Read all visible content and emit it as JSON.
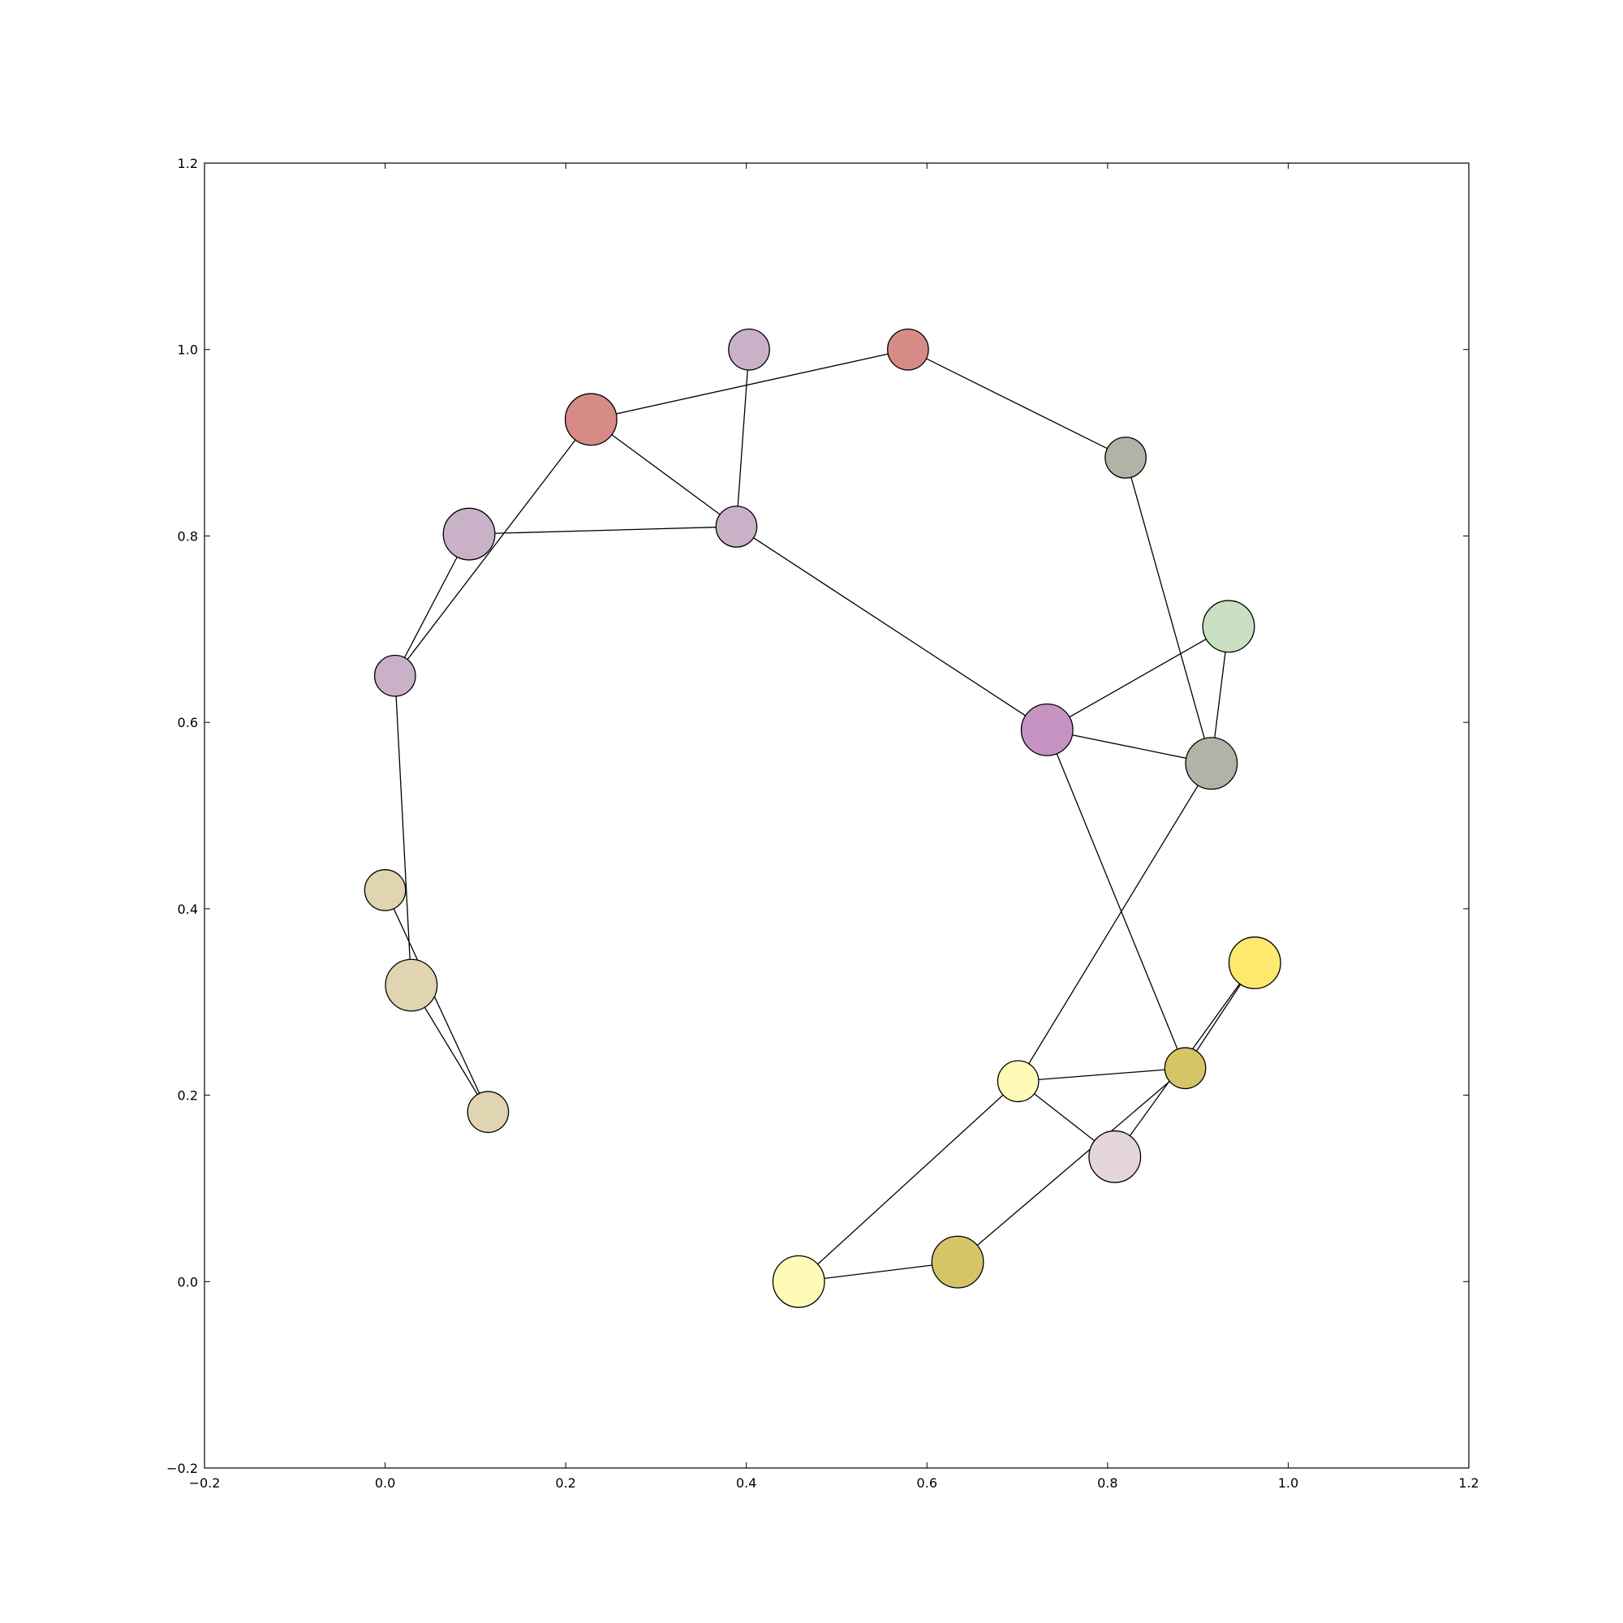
{
  "chart_data": {
    "type": "scatter",
    "title": "",
    "xlabel": "",
    "ylabel": "",
    "xlim": [
      -0.2,
      1.2
    ],
    "ylim": [
      -0.2,
      1.2
    ],
    "xticks": [
      "−0.2",
      "0.0",
      "0.2",
      "0.4",
      "0.6",
      "0.8",
      "1.0",
      "1.2"
    ],
    "yticks": [
      "−0.2",
      "0.0",
      "0.2",
      "0.4",
      "0.6",
      "0.8",
      "1.0",
      "1.2"
    ],
    "grid": false,
    "nodes": [
      {
        "id": 0,
        "x": 0.403,
        "y": 1.0,
        "size": 0.6,
        "color": "#c9b1c8"
      },
      {
        "id": 1,
        "x": 0.579,
        "y": 1.0,
        "size": 0.6,
        "color": "#d78b86"
      },
      {
        "id": 2,
        "x": 0.228,
        "y": 0.925,
        "size": 0.9,
        "color": "#d78b86"
      },
      {
        "id": 3,
        "x": 0.82,
        "y": 0.884,
        "size": 0.6,
        "color": "#b2b3a6"
      },
      {
        "id": 4,
        "x": 0.093,
        "y": 0.802,
        "size": 0.9,
        "color": "#c9b1c8"
      },
      {
        "id": 5,
        "x": 0.389,
        "y": 0.81,
        "size": 0.6,
        "color": "#c9b1c8"
      },
      {
        "id": 6,
        "x": 0.934,
        "y": 0.703,
        "size": 0.9,
        "color": "#c9e0c3"
      },
      {
        "id": 7,
        "x": 0.011,
        "y": 0.65,
        "size": 0.6,
        "color": "#c9b1c8"
      },
      {
        "id": 8,
        "x": 0.733,
        "y": 0.592,
        "size": 0.9,
        "color": "#c693c3"
      },
      {
        "id": 9,
        "x": 0.915,
        "y": 0.556,
        "size": 0.9,
        "color": "#b2b3a6"
      },
      {
        "id": 10,
        "x": 0.0,
        "y": 0.42,
        "size": 0.6,
        "color": "#e0d4b1"
      },
      {
        "id": 11,
        "x": 0.029,
        "y": 0.318,
        "size": 0.9,
        "color": "#e0d4b1"
      },
      {
        "id": 12,
        "x": 0.963,
        "y": 0.342,
        "size": 0.9,
        "color": "#fde96e"
      },
      {
        "id": 13,
        "x": 0.886,
        "y": 0.229,
        "size": 0.6,
        "color": "#d5c566"
      },
      {
        "id": 14,
        "x": 0.701,
        "y": 0.215,
        "size": 0.6,
        "color": "#fdfbb6"
      },
      {
        "id": 15,
        "x": 0.114,
        "y": 0.182,
        "size": 0.6,
        "color": "#e0d4b1"
      },
      {
        "id": 16,
        "x": 0.808,
        "y": 0.134,
        "size": 0.9,
        "color": "#e4d4dc"
      },
      {
        "id": 17,
        "x": 0.634,
        "y": 0.021,
        "size": 0.9,
        "color": "#d5c566"
      },
      {
        "id": 18,
        "x": 0.458,
        "y": 0.0,
        "size": 0.9,
        "color": "#fdfbb6"
      }
    ],
    "edges": [
      [
        0,
        5
      ],
      [
        1,
        2
      ],
      [
        1,
        3
      ],
      [
        2,
        5
      ],
      [
        2,
        7
      ],
      [
        3,
        9
      ],
      [
        4,
        5
      ],
      [
        4,
        7
      ],
      [
        5,
        8
      ],
      [
        6,
        8
      ],
      [
        6,
        9
      ],
      [
        7,
        11
      ],
      [
        8,
        9
      ],
      [
        8,
        13
      ],
      [
        9,
        14
      ],
      [
        10,
        15
      ],
      [
        11,
        15
      ],
      [
        12,
        13
      ],
      [
        12,
        16
      ],
      [
        13,
        14
      ],
      [
        13,
        17
      ],
      [
        14,
        16
      ],
      [
        14,
        18
      ],
      [
        17,
        18
      ]
    ]
  }
}
